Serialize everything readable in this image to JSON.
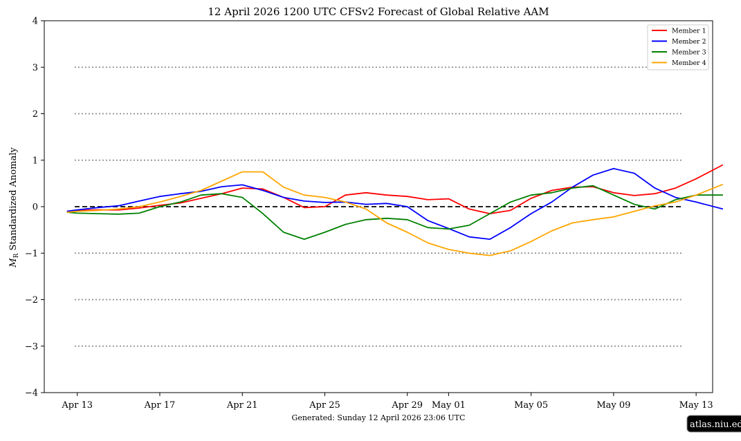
{
  "chart_data": {
    "type": "line",
    "title": "12  April  2026 1200 UTC   CFSv2 Forecast of Global Relative AAM",
    "ylabel": "M_R Standardized Anomaly",
    "ylabel_symbol": "M",
    "ylabel_sub": "R",
    "ylabel_rest": " Standardized Anomaly",
    "footer": "Generated: Sunday  12  April  2026  23:06 UTC",
    "watermark": "atlas.niu.edu",
    "xlabel": "",
    "xlim_days": [
      -0.6,
      31.8
    ],
    "ylim": [
      -4,
      4
    ],
    "x_ticks": [
      {
        "day": 1,
        "label": "Apr 13"
      },
      {
        "day": 5,
        "label": "Apr 17"
      },
      {
        "day": 9,
        "label": "Apr 21"
      },
      {
        "day": 13,
        "label": "Apr 25"
      },
      {
        "day": 17,
        "label": "Apr 29"
      },
      {
        "day": 19,
        "label": "May 01"
      },
      {
        "day": 23,
        "label": "May 05"
      },
      {
        "day": 27,
        "label": "May 09"
      },
      {
        "day": 31,
        "label": "May 13"
      }
    ],
    "y_ticks": [
      {
        "value": 4,
        "label": "4"
      },
      {
        "value": 3,
        "label": "3"
      },
      {
        "value": 2,
        "label": "2"
      },
      {
        "value": 1,
        "label": "1"
      },
      {
        "value": 0,
        "label": "0"
      },
      {
        "value": -1,
        "label": "−1"
      },
      {
        "value": -2,
        "label": "−2"
      },
      {
        "value": -3,
        "label": "−3"
      },
      {
        "value": -4,
        "label": "−4"
      }
    ],
    "dotted_lines": [
      3,
      2,
      1,
      -1,
      -2,
      -3
    ],
    "zero_line": 0,
    "legend_position": "top-right",
    "series": [
      {
        "name": "Member 1",
        "color": "#ff0000",
        "x": [
          0.5,
          1,
          2,
          3,
          4,
          5,
          6,
          7,
          8,
          9,
          10,
          11,
          12,
          13,
          14,
          15,
          16,
          17,
          18,
          19,
          20,
          21,
          22,
          23,
          24,
          25,
          26,
          27,
          28,
          29,
          30,
          31,
          32.3
        ],
        "values": [
          -0.1,
          -0.08,
          -0.07,
          -0.07,
          -0.03,
          0.03,
          0.08,
          0.18,
          0.28,
          0.4,
          0.38,
          0.2,
          -0.02,
          0.0,
          0.25,
          0.3,
          0.25,
          0.22,
          0.15,
          0.17,
          -0.05,
          -0.15,
          -0.08,
          0.18,
          0.35,
          0.42,
          0.43,
          0.3,
          0.24,
          0.28,
          0.4,
          0.6,
          0.9
        ]
      },
      {
        "name": "Member 2",
        "color": "#0000ff",
        "x": [
          0.5,
          1,
          2,
          3,
          4,
          5,
          6,
          7,
          8,
          9,
          10,
          11,
          12,
          13,
          14,
          15,
          16,
          17,
          18,
          19,
          20,
          21,
          22,
          23,
          24,
          25,
          26,
          27,
          28,
          29,
          30,
          31,
          32.3
        ],
        "values": [
          -0.1,
          -0.07,
          -0.02,
          0.02,
          0.12,
          0.22,
          0.28,
          0.33,
          0.43,
          0.47,
          0.35,
          0.2,
          0.12,
          0.09,
          0.1,
          0.05,
          0.07,
          0.0,
          -0.3,
          -0.47,
          -0.65,
          -0.7,
          -0.45,
          -0.15,
          0.1,
          0.42,
          0.68,
          0.82,
          0.72,
          0.4,
          0.2,
          0.1,
          -0.05
        ]
      },
      {
        "name": "Member 3",
        "color": "#008000",
        "x": [
          0.5,
          1,
          2,
          3,
          4,
          5,
          6,
          7,
          8,
          9,
          10,
          11,
          12,
          13,
          14,
          15,
          16,
          17,
          18,
          19,
          20,
          21,
          22,
          23,
          24,
          25,
          26,
          27,
          28,
          29,
          30,
          31,
          32.3
        ],
        "values": [
          -0.12,
          -0.14,
          -0.15,
          -0.16,
          -0.14,
          0.0,
          0.1,
          0.25,
          0.28,
          0.2,
          -0.15,
          -0.55,
          -0.7,
          -0.55,
          -0.38,
          -0.28,
          -0.25,
          -0.28,
          -0.45,
          -0.48,
          -0.4,
          -0.15,
          0.1,
          0.25,
          0.3,
          0.4,
          0.45,
          0.25,
          0.05,
          -0.05,
          0.15,
          0.25,
          0.25
        ]
      },
      {
        "name": "Member 4",
        "color": "#ffa500",
        "x": [
          0.5,
          1,
          2,
          3,
          4,
          5,
          6,
          7,
          8,
          9,
          10,
          11,
          12,
          13,
          14,
          15,
          16,
          17,
          18,
          19,
          20,
          21,
          22,
          23,
          24,
          25,
          26,
          27,
          28,
          29,
          30,
          31,
          32.3
        ],
        "values": [
          -0.12,
          -0.1,
          -0.08,
          -0.05,
          0.0,
          0.1,
          0.22,
          0.35,
          0.55,
          0.75,
          0.75,
          0.42,
          0.25,
          0.2,
          0.1,
          -0.05,
          -0.35,
          -0.55,
          -0.78,
          -0.92,
          -1.0,
          -1.05,
          -0.95,
          -0.75,
          -0.52,
          -0.35,
          -0.28,
          -0.22,
          -0.1,
          0.02,
          0.1,
          0.25,
          0.48
        ]
      }
    ]
  }
}
